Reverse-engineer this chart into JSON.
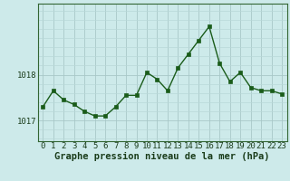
{
  "x": [
    0,
    1,
    2,
    3,
    4,
    5,
    6,
    7,
    8,
    9,
    10,
    11,
    12,
    13,
    14,
    15,
    16,
    17,
    18,
    19,
    20,
    21,
    22,
    23
  ],
  "y": [
    1017.3,
    1017.65,
    1017.45,
    1017.35,
    1017.2,
    1017.1,
    1017.1,
    1017.3,
    1017.55,
    1017.55,
    1018.05,
    1017.9,
    1017.65,
    1018.15,
    1018.45,
    1018.75,
    1019.05,
    1018.25,
    1017.85,
    1018.05,
    1017.72,
    1017.65,
    1017.65,
    1017.58
  ],
  "line_color": "#1a5c1a",
  "marker": "s",
  "marker_size": 2.5,
  "bg_color": "#cdeaea",
  "grid_minor_color": "#b8d8d8",
  "grid_major_color": "#a8c8c8",
  "ylim_min": 1016.55,
  "ylim_max": 1019.55,
  "yticks": [
    1017,
    1018
  ],
  "xticks": [
    0,
    1,
    2,
    3,
    4,
    5,
    6,
    7,
    8,
    9,
    10,
    11,
    12,
    13,
    14,
    15,
    16,
    17,
    18,
    19,
    20,
    21,
    22,
    23
  ],
  "xlabel": "Graphe pression niveau de la mer (hPa)",
  "xlabel_fontsize": 7.5,
  "tick_fontsize": 6.5,
  "line_width": 1.0,
  "spine_color": "#336633"
}
